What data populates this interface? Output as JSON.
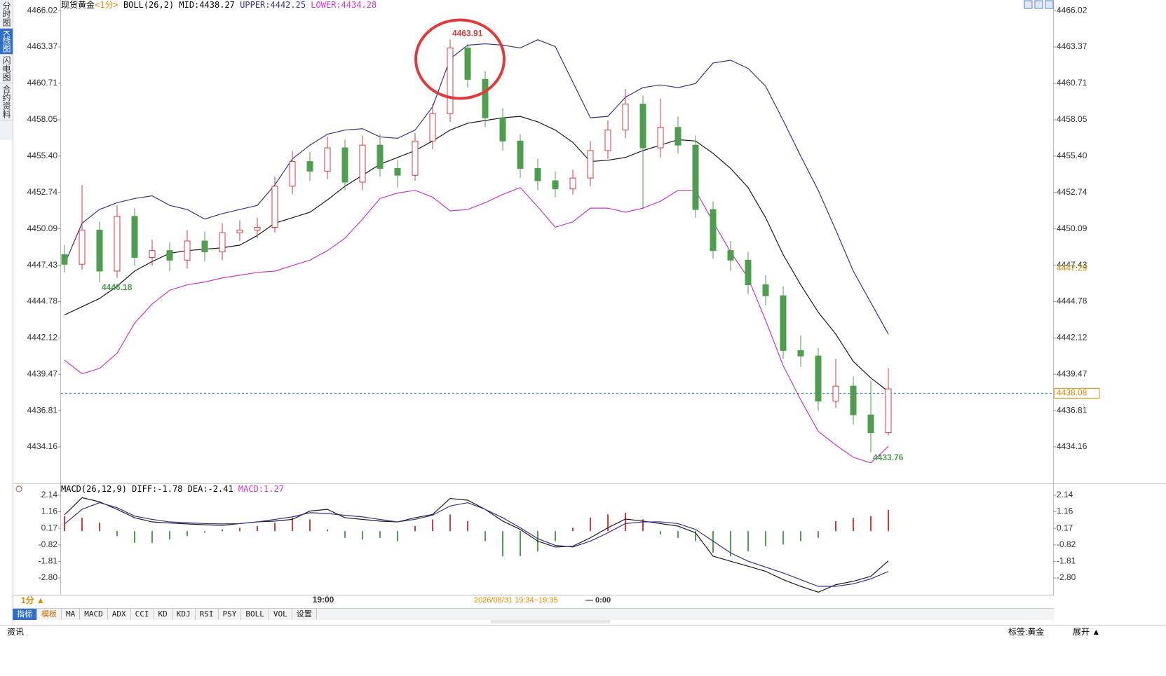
{
  "sidebar": {
    "tabs": [
      "分时图",
      "K线图",
      "闪电图",
      "合约资料"
    ]
  },
  "header": {
    "instrument": "现货黄金",
    "period": "<1分>",
    "indicator": "BOLL(26,2)",
    "mid": "MID:4438.27",
    "upper": "UPPER:4442.25",
    "lower": "LOWER:4434.28"
  },
  "macd_header": {
    "indicator": "MACD(26,12,9)",
    "diff": "DIFF:-1.78",
    "dea": "DEA:-2.41",
    "macd": "MACD:1.27"
  },
  "chart_data": [
    {
      "type": "candlestick",
      "categories": [
        null,
        null,
        null,
        null,
        null,
        null,
        null,
        null,
        null,
        null,
        null,
        null,
        null,
        null,
        null,
        "19:00",
        null,
        null,
        null,
        null,
        null,
        null,
        null,
        null,
        null,
        null,
        null,
        null,
        null,
        null,
        null,
        null,
        null,
        null,
        null,
        null,
        null,
        null,
        null,
        null,
        null,
        null,
        null,
        null,
        null,
        null,
        null,
        null
      ],
      "open": [
        4448.2,
        4447.5,
        4450,
        4447,
        4451,
        4448,
        4448.5,
        4447.8,
        4449.2,
        4448.4,
        4449.8,
        4450,
        4450.2,
        4453.2,
        4455,
        4454.3,
        4456,
        4453.5,
        4456.2,
        4454.5,
        4454,
        4456.5,
        4458.5,
        4463.3,
        4461,
        4458.2,
        4456.5,
        4454.5,
        4453.6,
        4453,
        4453.8,
        4455.8,
        4457.3,
        4459.2,
        4456,
        4457.5,
        4456.2,
        4451.5,
        4448.5,
        4447.8,
        4446,
        4445.2,
        4441.2,
        4440.8,
        4437.5,
        4438.6,
        4436.5,
        4435.2
      ],
      "high": [
        4448.9,
        4453.3,
        4450.6,
        4451.8,
        4451.6,
        4449.3,
        4449.1,
        4450.0,
        4449.9,
        4450.5,
        4450.7,
        4450.9,
        4453.9,
        4455.8,
        4455.7,
        4456.8,
        4456.6,
        4456.9,
        4457.0,
        4455.1,
        4457.1,
        4459.2,
        4463.91,
        4463.6,
        4461.6,
        4458.9,
        4457.0,
        4455.2,
        4454.3,
        4454.4,
        4456.5,
        4458.0,
        4460.3,
        4459.8,
        4459.6,
        4458.3,
        4456.9,
        4452.1,
        4449.2,
        4448.4,
        4446.7,
        4445.9,
        4442.3,
        4441.4,
        4440.6,
        4439.3,
        4439.0,
        4439.9
      ],
      "low": [
        4446.9,
        4447.1,
        4446.18,
        4446.5,
        4447.4,
        4447.4,
        4447.0,
        4447.2,
        4447.7,
        4447.8,
        4449.2,
        4449.4,
        4449.8,
        4452.6,
        4453.6,
        4453.7,
        4452.9,
        4452.9,
        4453.9,
        4453.1,
        4453.6,
        4455.9,
        4457.9,
        4460.4,
        4457.5,
        4455.8,
        4453.8,
        4452.9,
        4452.4,
        4452.6,
        4453.2,
        4455.2,
        4456.7,
        4451.5,
        4455.3,
        4455.6,
        4450.9,
        4447.9,
        4447.0,
        4445.3,
        4444.5,
        4440.6,
        4440.0,
        4436.8,
        4437.0,
        4435.8,
        4433.76,
        4435.0
      ],
      "close": [
        4447.5,
        4450,
        4447,
        4451,
        4448,
        4448.5,
        4447.8,
        4449.2,
        4448.4,
        4449.8,
        4450,
        4450.2,
        4453.2,
        4455,
        4454.3,
        4456,
        4453.5,
        4456.2,
        4454.5,
        4454,
        4456.5,
        4458.5,
        4463.3,
        4461,
        4458.2,
        4456.5,
        4454.5,
        4453.6,
        4453,
        4453.8,
        4455.8,
        4457.3,
        4459.2,
        4456,
        4457.5,
        4456.2,
        4451.5,
        4448.5,
        4447.8,
        4446,
        4445.2,
        4441.2,
        4440.8,
        4437.5,
        4438.6,
        4436.5,
        4435.2,
        4438.4
      ],
      "up_color": "#d23c3c",
      "down_color": "#4f9e4f",
      "series": [
        {
          "color": "#33338f",
          "values": [
            4447.5,
            4450.5,
            4451.5,
            4452,
            4452.3,
            4452.5,
            4451.8,
            4451.5,
            4450.8,
            4451.2,
            4451.5,
            4451.8,
            4453.3,
            4455.2,
            4456.2,
            4457,
            4457.3,
            4457.4,
            4456.8,
            4456.7,
            4457.3,
            4459,
            4462.5,
            4463.5,
            4463.6,
            4463.5,
            4463.3,
            4463.9,
            4463.4,
            4460.8,
            4458.2,
            4458.3,
            4459.7,
            4460.4,
            4460.6,
            4460.4,
            4460.7,
            4462.2,
            4462.4,
            4461.8,
            4460.5,
            4458,
            4455.4,
            4452.9,
            4450,
            4447,
            4444.7,
            4442.4
          ]
        },
        {
          "color": "#1a1a1a",
          "values": [
            4443.8,
            4444.4,
            4445.0,
            4445.9,
            4447.0,
            4447.7,
            4448.3,
            4448.5,
            4448.6,
            4448.7,
            4448.9,
            4449.6,
            4450.5,
            4450.9,
            4451.3,
            4452.2,
            4453.2,
            4454.0,
            4454.8,
            4455.3,
            4455.8,
            4456.5,
            4457.3,
            4457.8,
            4458.0,
            4458.2,
            4458.3,
            4457.9,
            4457.3,
            4456.4,
            4455.0,
            4455.1,
            4455.3,
            4455.8,
            4456.2,
            4456.6,
            4456.5,
            4455.6,
            4454.5,
            4453.1,
            4450.9,
            4448.2,
            4446.0,
            4444.0,
            4442.4,
            4440.4,
            4439.2,
            4438.2
          ]
        },
        {
          "color": "#c837c8",
          "values": [
            4440.5,
            4439.5,
            4439.9,
            4441.0,
            4443.2,
            4444.6,
            4445.6,
            4446.0,
            4446.2,
            4446.5,
            4446.7,
            4446.9,
            4447.0,
            4447.4,
            4447.8,
            4448.5,
            4449.4,
            4450.8,
            4452.3,
            4452.7,
            4452.9,
            4452.4,
            4451.4,
            4451.5,
            4452.0,
            4452.6,
            4453.1,
            4451.7,
            4450.2,
            4450.6,
            4451.6,
            4451.6,
            4451.3,
            4451.6,
            4452.1,
            4452.9,
            4452.9,
            4450.6,
            4448.4,
            4446.5,
            4443.4,
            4440.1,
            4437.6,
            4435.3,
            4434.3,
            4433.4,
            4433.0,
            4434.2
          ]
        }
      ],
      "ylim": [
        4431.6,
        4466.8
      ],
      "yticks": [
        4466.02,
        4463.37,
        4460.71,
        4458.05,
        {
          "value": 4455.4,
          "label": "4455.40"
        },
        4452.74,
        4450.09,
        4447.43,
        4444.78,
        4442.12,
        4439.47,
        4436.81,
        4434.16
      ],
      "grid": false,
      "price_lines": [
        {
          "value": 4438.08,
          "label": "4438.08",
          "color": "#e08a00",
          "dashed": true
        },
        {
          "value": 4447.29,
          "label": "4447.29",
          "color": "#e08a00",
          "dashed": false
        }
      ],
      "annotations": [
        {
          "value": 4463.91,
          "label": "4463.91",
          "color": "#d23c3c"
        },
        {
          "value": 4446.18,
          "label": "4446.18",
          "color": "#4f9e4f"
        },
        {
          "value": 4433.76,
          "label": "4433.76",
          "color": "#4f9e4f"
        }
      ]
    },
    {
      "type": "macd",
      "diff": {
        "color": "#1a1a1a",
        "values": [
          0.97,
          2.0,
          1.75,
          1.3,
          0.8,
          0.55,
          0.48,
          0.43,
          0.38,
          0.34,
          0.45,
          0.55,
          0.6,
          0.7,
          1.2,
          1.3,
          0.8,
          0.7,
          0.6,
          0.55,
          0.8,
          1.0,
          1.95,
          1.85,
          1.3,
          0.6,
          0.1,
          -0.6,
          -0.95,
          -0.9,
          -0.4,
          0.2,
          0.72,
          0.6,
          0.45,
          0.3,
          -0.1,
          -1.5,
          -1.8,
          -2.1,
          -2.4,
          -2.9,
          -3.3,
          -3.65,
          -3.2,
          -3.0,
          -2.7,
          -1.78
        ]
      },
      "dea": {
        "color": "#33338f",
        "values": [
          0.43,
          1.3,
          1.7,
          1.4,
          0.9,
          0.7,
          0.55,
          0.5,
          0.45,
          0.43,
          0.45,
          0.55,
          0.7,
          0.85,
          1.1,
          1.05,
          0.95,
          0.85,
          0.7,
          0.55,
          0.7,
          0.95,
          1.5,
          1.7,
          1.3,
          0.8,
          0.2,
          -0.45,
          -0.85,
          -0.95,
          -0.6,
          -0.1,
          0.45,
          0.55,
          0.55,
          0.45,
          0.1,
          -0.6,
          -1.3,
          -1.8,
          -2.15,
          -2.5,
          -2.9,
          -3.3,
          -3.3,
          -3.15,
          -2.85,
          -2.41
        ]
      },
      "histogram": {
        "up_color": "#d23c3c",
        "down_color": "#4f9e4f",
        "values": [
          0.9,
          0.8,
          0.5,
          -0.3,
          -0.7,
          -0.7,
          -0.5,
          -0.3,
          -0.1,
          0.1,
          0.2,
          0.3,
          0.5,
          0.8,
          0.7,
          0.1,
          -0.4,
          -0.5,
          -0.4,
          -0.6,
          0.3,
          0.7,
          1.0,
          0.6,
          -0.6,
          -1.5,
          -1.5,
          -1.2,
          -0.6,
          0.2,
          0.8,
          1.0,
          1.1,
          0.7,
          -0.2,
          -0.4,
          -0.6,
          -1.3,
          -1.5,
          -1.2,
          -0.9,
          -0.8,
          -0.6,
          -0.4,
          0.6,
          0.8,
          0.9,
          1.27
        ]
      },
      "ylim": [
        -3.76,
        2.77
      ],
      "yticks": [
        2.14,
        1.16,
        0.17,
        -0.82,
        -1.81,
        {
          "value": -2.8,
          "label": "-2.80"
        }
      ],
      "grid": false
    }
  ],
  "footer": {
    "period": "1分 ▲",
    "time_range": "2026/08/31 19:34~19:35",
    "time_end": "— 0:00"
  },
  "toolbar": {
    "tabs": [
      "指标",
      "模板",
      "MA",
      "MACD",
      "ADX",
      "CCI",
      "KD",
      "KDJ",
      "RSI",
      "PSY",
      "BOLL",
      "VOL",
      "设置"
    ]
  },
  "status": {
    "left": "资讯",
    "tag": "标签:黄金",
    "expand": "展开 ▲"
  }
}
